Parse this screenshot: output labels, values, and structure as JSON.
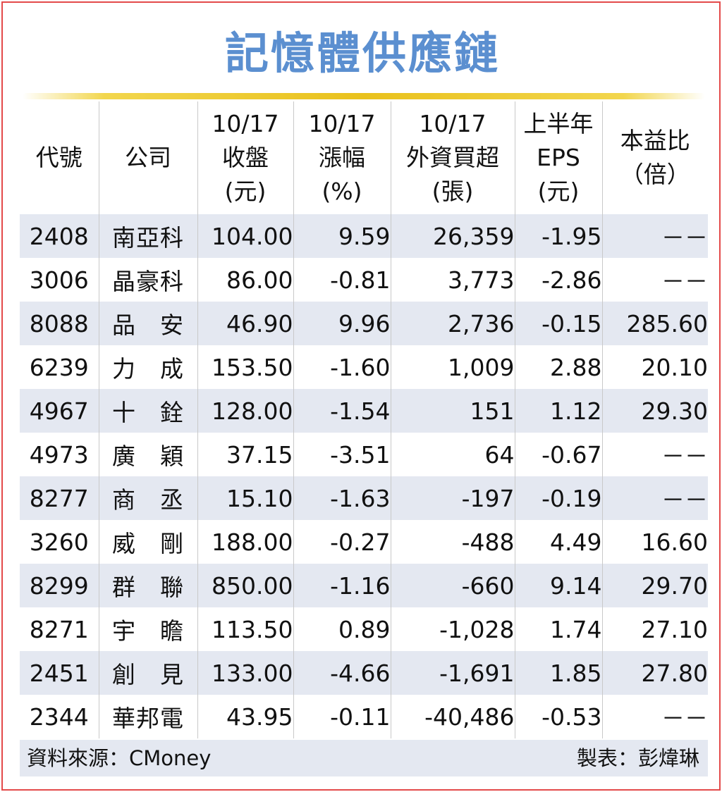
{
  "title": "記憶體供應鏈",
  "colors": {
    "title": "#5b8fd0",
    "accent_line": "#e9c11c",
    "row_shade": "#e4e8f1",
    "border": "#e34a4a"
  },
  "headers": [
    [
      "代號"
    ],
    [
      "公司"
    ],
    [
      "10/17",
      "收盤",
      "(元)"
    ],
    [
      "10/17",
      "漲幅",
      "(%)"
    ],
    [
      "10/17",
      "外資買超",
      "(張)"
    ],
    [
      "上半年",
      "EPS",
      "(元)"
    ],
    [
      "本益比",
      "（倍）"
    ]
  ],
  "rows": [
    [
      "2408",
      "南亞科",
      "104.00",
      "9.59",
      "26,359",
      "-1.95",
      "－－"
    ],
    [
      "3006",
      "晶豪科",
      "86.00",
      "-0.81",
      "3,773",
      "-2.86",
      "－－"
    ],
    [
      "8088",
      "品　安",
      "46.90",
      "9.96",
      "2,736",
      "-0.15",
      "285.60"
    ],
    [
      "6239",
      "力　成",
      "153.50",
      "-1.60",
      "1,009",
      "2.88",
      "20.10"
    ],
    [
      "4967",
      "十　銓",
      "128.00",
      "-1.54",
      "151",
      "1.12",
      "29.30"
    ],
    [
      "4973",
      "廣　穎",
      "37.15",
      "-3.51",
      "64",
      "-0.67",
      "－－"
    ],
    [
      "8277",
      "商　丞",
      "15.10",
      "-1.63",
      "-197",
      "-0.19",
      "－－"
    ],
    [
      "3260",
      "威　剛",
      "188.00",
      "-0.27",
      "-488",
      "4.49",
      "16.60"
    ],
    [
      "8299",
      "群　聯",
      "850.00",
      "-1.16",
      "-660",
      "9.14",
      "29.70"
    ],
    [
      "8271",
      "宇　瞻",
      "113.50",
      "0.89",
      "-1,028",
      "1.74",
      "27.10"
    ],
    [
      "2451",
      "創　見",
      "133.00",
      "-4.66",
      "-1,691",
      "1.85",
      "27.80"
    ],
    [
      "2344",
      "華邦電",
      "43.95",
      "-0.11",
      "-40,486",
      "-0.53",
      "－－"
    ]
  ],
  "footer": {
    "source": "資料來源：CMoney",
    "maker": "製表：彭煒琳"
  }
}
